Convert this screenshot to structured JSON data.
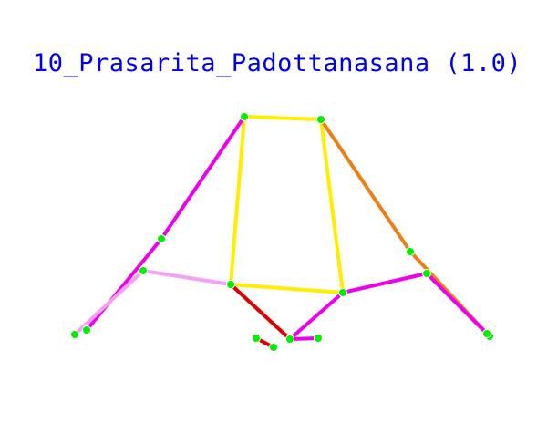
{
  "title": "10_Prasarita_Padottanasana (1.0)",
  "colors": {
    "title": "#0000ee",
    "keypoint": "#00ee00",
    "magenta": "#ee00ee",
    "light_pink": "#f4a0f4",
    "yellow": "#ffee00",
    "orange": "#ee7f16",
    "red": "#dd0000"
  },
  "keypoints": [
    "left-shoulder",
    "right-shoulder",
    "left-elbow",
    "left-wrist",
    "right-elbow",
    "right-wrist",
    "left-hip",
    "right-hip",
    "left-knee",
    "left-ankle",
    "right-knee",
    "right-ankle",
    "head-left",
    "head-center-left",
    "head-center-right",
    "head-right"
  ],
  "bones": [
    {
      "from": "left-shoulder",
      "to": "right-shoulder",
      "color": "yellow"
    },
    {
      "from": "left-shoulder",
      "to": "left-hip",
      "color": "yellow"
    },
    {
      "from": "right-shoulder",
      "to": "right-hip",
      "color": "yellow"
    },
    {
      "from": "left-hip",
      "to": "right-hip",
      "color": "yellow"
    },
    {
      "from": "left-shoulder",
      "to": "left-elbow",
      "color": "magenta"
    },
    {
      "from": "left-elbow",
      "to": "left-wrist",
      "color": "magenta"
    },
    {
      "from": "right-shoulder",
      "to": "right-elbow",
      "color": "orange"
    },
    {
      "from": "right-elbow",
      "to": "right-wrist",
      "color": "orange"
    },
    {
      "from": "left-hip",
      "to": "left-knee",
      "color": "light_pink"
    },
    {
      "from": "left-knee",
      "to": "left-ankle",
      "color": "light_pink"
    },
    {
      "from": "right-hip",
      "to": "right-knee",
      "color": "magenta"
    },
    {
      "from": "right-knee",
      "to": "right-ankle",
      "color": "magenta"
    },
    {
      "from": "left-hip",
      "to": "head-center-right",
      "color": "red"
    },
    {
      "from": "right-hip",
      "to": "head-center-right",
      "color": "magenta"
    },
    {
      "from": "head-left",
      "to": "head-center-left",
      "color": "red"
    },
    {
      "from": "head-center-right",
      "to": "head-right",
      "color": "magenta"
    }
  ]
}
